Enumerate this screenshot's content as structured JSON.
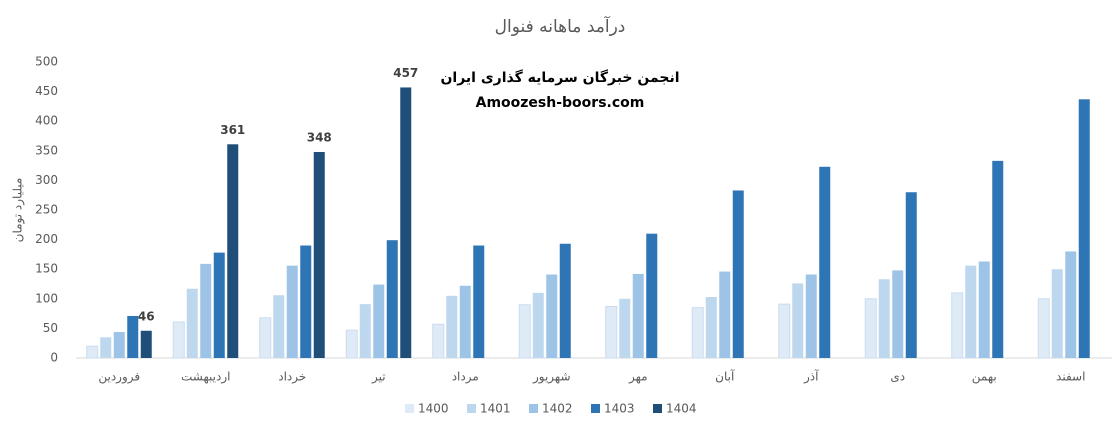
{
  "chart_data": {
    "type": "bar",
    "title": "درآمد ماهانه فنوال",
    "y_label": "میلیارد تومان",
    "annotations": [
      "انجمن خبرگان سرمایه گذاری ایران",
      "Amoozesh-boors.com"
    ],
    "categories": [
      "فروردین",
      "اردیبهشت",
      "خرداد",
      "تیر",
      "مرداد",
      "شهریور",
      "مهر",
      "آبان",
      "آذر",
      "دی",
      "بهمن",
      "اسفند"
    ],
    "series": [
      {
        "name": "1400",
        "color": "#deebf7",
        "values": [
          20,
          61,
          68,
          47,
          57,
          90,
          87,
          85,
          91,
          100,
          110,
          100
        ]
      },
      {
        "name": "1401",
        "color": "#bdd7ee",
        "values": [
          35,
          117,
          106,
          91,
          105,
          110,
          100,
          103,
          126,
          133,
          156,
          150
        ]
      },
      {
        "name": "1402",
        "color": "#9dc3e6",
        "values": [
          44,
          159,
          156,
          124,
          122,
          141,
          142,
          146,
          141,
          148,
          163,
          180
        ]
      },
      {
        "name": "1403",
        "color": "#2e75b6",
        "values": [
          71,
          178,
          190,
          199,
          190,
          193,
          210,
          283,
          323,
          280,
          333,
          437
        ]
      },
      {
        "name": "1404",
        "color": "#1f4e79",
        "values": [
          46,
          361,
          348,
          457,
          null,
          null,
          null,
          null,
          null,
          null,
          null,
          null
        ],
        "data_labels": true
      }
    ],
    "ylim": [
      0,
      500
    ],
    "yticks": [
      0,
      50,
      100,
      150,
      200,
      250,
      300,
      350,
      400,
      450,
      500
    ],
    "grid": false,
    "legend": "bottom"
  }
}
